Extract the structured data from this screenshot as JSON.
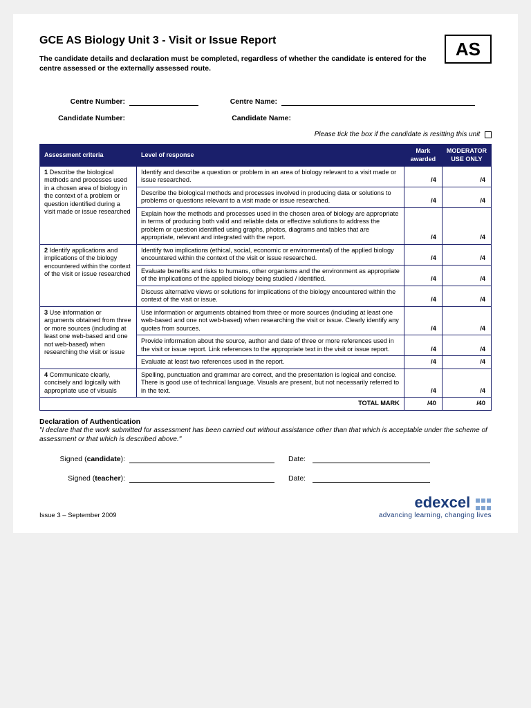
{
  "header": {
    "title": "GCE AS Biology Unit 3 - Visit or Issue Report",
    "subtitle": "The candidate details and declaration must be completed, regardless of whether the candidate is entered for the centre assessed or the externally assessed route.",
    "badge": "AS"
  },
  "fields": {
    "centre_number": "Centre Number:",
    "centre_name": "Centre Name:",
    "candidate_number": "Candidate Number:",
    "candidate_name": "Candidate Name:",
    "resit_note": "Please tick the box if the candidate is resitting this unit"
  },
  "table": {
    "headers": {
      "criteria": "Assessment criteria",
      "level": "Level of response",
      "mark": "Mark awarded",
      "mod": "MODERATOR USE ONLY"
    },
    "groups": [
      {
        "criteria_num": "1",
        "criteria": "Describe the biological methods and processes used in a chosen area of biology in the context of a problem or question identified during a visit made or issue researched",
        "rows": [
          {
            "text": "Identify and describe a question or problem in an area of biology relevant to a visit made or issue researched.",
            "mark": "/4",
            "mod": "/4"
          },
          {
            "text": "Describe the biological methods and processes involved in producing data or solutions to problems or questions relevant to a visit made or issue researched.",
            "mark": "/4",
            "mod": "/4"
          },
          {
            "text": "Explain how the methods and processes used in the chosen area of biology are appropriate in terms of producing both valid and reliable data or effective solutions to address the problem or question identified using graphs, photos, diagrams and tables that are appropriate, relevant and integrated with the report.",
            "mark": "/4",
            "mod": "/4"
          }
        ]
      },
      {
        "criteria_num": "2",
        "criteria": "Identify applications and implications of the biology encountered within the context of the visit or issue researched",
        "rows": [
          {
            "text": "Identify two implications (ethical, social, economic or environmental) of the applied biology encountered within the context of the visit or issue researched.",
            "mark": "/4",
            "mod": "/4"
          },
          {
            "text": "Evaluate benefits and risks to humans, other organisms and the environment as appropriate of the implications of the applied biology being studied / identified.",
            "mark": "/4",
            "mod": "/4"
          },
          {
            "text": "Discuss alternative views or solutions for implications of the biology encountered within the context of the visit or issue.",
            "mark": "/4",
            "mod": "/4"
          }
        ]
      },
      {
        "criteria_num": "3",
        "criteria": "Use information or arguments obtained from three or more sources (including at least one web-based and one not web-based) when researching the visit or issue",
        "rows": [
          {
            "text": "Use information or arguments obtained from three or more sources (including at least one web-based and one not web-based) when researching the visit or issue. Clearly identify any quotes from sources.",
            "mark": "/4",
            "mod": "/4"
          },
          {
            "text": "Provide information about the source, author and date of three or more references used in the visit or issue report. Link references to the appropriate text in the visit or issue report.",
            "mark": "/4",
            "mod": "/4"
          },
          {
            "text": "Evaluate at least two references used in the report.",
            "mark": "/4",
            "mod": "/4"
          }
        ]
      },
      {
        "criteria_num": "4",
        "criteria": "Communicate clearly, concisely and logically with appropriate use of visuals",
        "rows": [
          {
            "text": "Spelling, punctuation and grammar are correct, and the presentation is logical and concise. There is good use of technical language. Visuals are present, but not necessarily referred to in the text.",
            "mark": "/4",
            "mod": "/4"
          }
        ]
      }
    ],
    "total": {
      "label": "TOTAL MARK",
      "mark": "/40",
      "mod": "/40"
    }
  },
  "declaration": {
    "heading": "Declaration of Authentication",
    "text": "\"I declare that the work submitted for assessment has been carried out without assistance other than that which is acceptable under the scheme of assessment or that which is described above.\"",
    "signed_candidate": "Signed (candidate):",
    "signed_teacher": "Signed (teacher):",
    "date": "Date:"
  },
  "footer": {
    "issue": "Issue 3 – September 2009",
    "logo_name": "edexcel",
    "logo_tag": "advancing learning, changing lives"
  },
  "colors": {
    "navy": "#1a1f6b",
    "logo_blue": "#1a3b7a",
    "dot": "#7fa3d1"
  }
}
